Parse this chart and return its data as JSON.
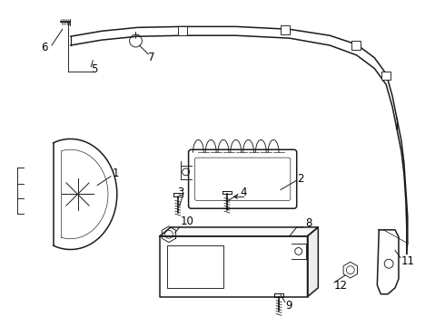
{
  "background_color": "#ffffff",
  "line_color": "#1a1a1a",
  "figsize": [
    4.9,
    3.6
  ],
  "dpi": 100,
  "label_fontsize": 8.5,
  "callout_lw": 0.7
}
